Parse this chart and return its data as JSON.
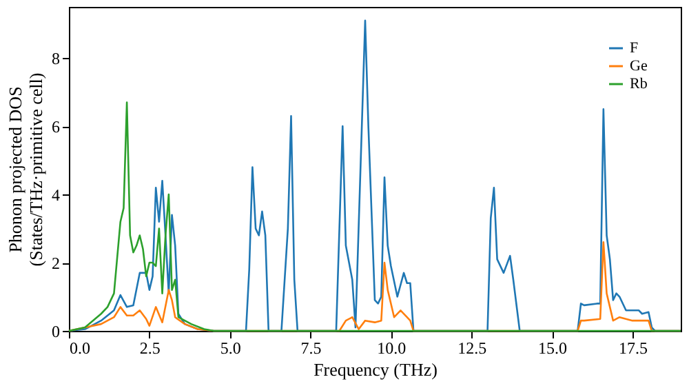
{
  "chart_data": {
    "type": "line",
    "xlabel": "Frequency (THz)",
    "ylabel": "Phonon projected DOS\n(States/THz·primitive cell)",
    "xlim": [
      0,
      19
    ],
    "ylim": [
      0,
      9.5
    ],
    "xticks": [
      {
        "value": 0,
        "label": "0.0"
      },
      2.5,
      {
        "value": 5,
        "label": "5.0"
      },
      7.5,
      {
        "value": 10,
        "label": "10.0"
      },
      12.5,
      {
        "value": 15,
        "label": "15.0"
      },
      17.5
    ],
    "yticks": [
      0,
      2,
      4,
      6,
      8
    ],
    "grid": false,
    "legend": "top right",
    "line_style": "solid",
    "marker": "none",
    "series": [
      {
        "name": "F",
        "color": "#1f77b4",
        "x": [
          0,
          0.5,
          1.0,
          1.4,
          1.6,
          1.8,
          2.0,
          2.2,
          2.4,
          2.5,
          2.6,
          2.7,
          2.8,
          2.9,
          3.0,
          3.1,
          3.2,
          3.3,
          3.4,
          3.6,
          4.0,
          4.5,
          5.5,
          5.6,
          5.7,
          5.8,
          5.9,
          6.0,
          6.1,
          6.2,
          6.6,
          6.8,
          6.9,
          7.0,
          7.1,
          8.3,
          8.5,
          8.6,
          8.8,
          8.9,
          9.2,
          9.3,
          9.5,
          9.6,
          9.7,
          9.8,
          9.9,
          10.0,
          10.2,
          10.4,
          10.5,
          10.6,
          10.7,
          13.0,
          13.1,
          13.2,
          13.3,
          13.5,
          13.7,
          13.8,
          14.0,
          15.8,
          15.9,
          16.0,
          16.4,
          16.5,
          16.6,
          16.7,
          16.8,
          16.9,
          17.0,
          17.1,
          17.3,
          17.5,
          17.7,
          17.8,
          18.0,
          18.1,
          18.2,
          19.0
        ],
        "values": [
          0,
          0.05,
          0.3,
          0.6,
          1.05,
          0.7,
          0.75,
          1.7,
          1.7,
          1.2,
          1.6,
          4.2,
          3.2,
          4.4,
          2.8,
          1.1,
          3.4,
          2.5,
          0.5,
          0.2,
          0.05,
          0,
          0,
          1.8,
          4.8,
          3.0,
          2.8,
          3.5,
          2.8,
          0,
          0,
          3.0,
          6.3,
          1.5,
          0,
          0,
          6.0,
          2.5,
          1.5,
          0.1,
          9.1,
          6.0,
          0.9,
          0.8,
          1.0,
          4.5,
          2.5,
          1.9,
          1.0,
          1.7,
          1.4,
          1.4,
          0,
          0,
          3.3,
          4.2,
          2.1,
          1.7,
          2.2,
          1.5,
          0,
          0,
          0.8,
          0.75,
          0.8,
          0.8,
          6.5,
          2.8,
          2.1,
          0.9,
          1.1,
          1.0,
          0.6,
          0.6,
          0.6,
          0.5,
          0.55,
          0.1,
          0,
          0
        ]
      },
      {
        "name": "Ge",
        "color": "#ff7f0e",
        "x": [
          0,
          1.0,
          1.4,
          1.6,
          1.8,
          2.0,
          2.2,
          2.4,
          2.5,
          2.7,
          2.9,
          3.1,
          3.2,
          3.3,
          3.6,
          4.0,
          4.5,
          8.4,
          8.6,
          8.8,
          9.0,
          9.2,
          9.5,
          9.7,
          9.8,
          9.9,
          10.1,
          10.3,
          10.5,
          10.6,
          10.7,
          15.8,
          15.9,
          16.0,
          16.5,
          16.6,
          16.7,
          16.8,
          16.9,
          17.1,
          17.5,
          17.8,
          18.0,
          18.1,
          19.0
        ],
        "values": [
          0,
          0.2,
          0.4,
          0.7,
          0.45,
          0.45,
          0.6,
          0.35,
          0.15,
          0.7,
          0.25,
          1.2,
          0.9,
          0.4,
          0.2,
          0.05,
          0,
          0,
          0.3,
          0.4,
          0.05,
          0.3,
          0.25,
          0.3,
          2.0,
          1.2,
          0.4,
          0.6,
          0.4,
          0.3,
          0,
          0,
          0.3,
          0.3,
          0.35,
          2.6,
          1.1,
          0.7,
          0.3,
          0.4,
          0.3,
          0.3,
          0.3,
          0,
          0
        ]
      },
      {
        "name": "Rb",
        "color": "#2ca02c",
        "x": [
          0,
          0.5,
          1.0,
          1.2,
          1.4,
          1.6,
          1.7,
          1.8,
          1.9,
          2.0,
          2.1,
          2.2,
          2.3,
          2.4,
          2.5,
          2.6,
          2.7,
          2.8,
          2.9,
          3.0,
          3.1,
          3.2,
          3.3,
          3.4,
          3.8,
          4.2,
          4.5,
          19.0
        ],
        "values": [
          0,
          0.1,
          0.5,
          0.7,
          1.1,
          3.2,
          3.6,
          6.7,
          2.8,
          2.3,
          2.5,
          2.8,
          2.4,
          1.6,
          2.0,
          2.0,
          1.9,
          3.0,
          1.1,
          2.8,
          4.0,
          1.2,
          1.5,
          0.4,
          0.2,
          0.05,
          0,
          0
        ]
      }
    ]
  }
}
